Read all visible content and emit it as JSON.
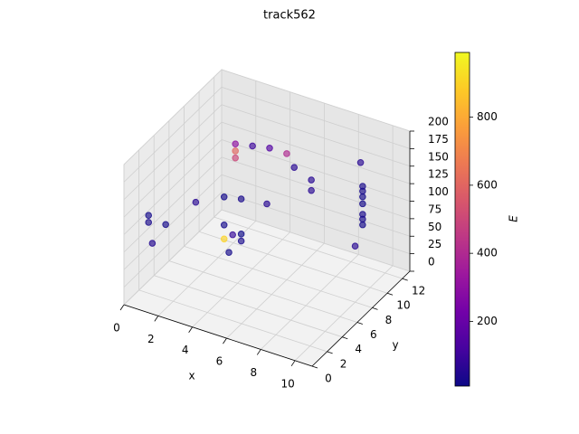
{
  "chart_data": {
    "type": "scatter3d",
    "title": "track562",
    "x_label": "x",
    "y_label": "y",
    "colorbar_label": "E",
    "xlim": [
      0,
      11
    ],
    "ylim": [
      0,
      13
    ],
    "zlim": [
      0,
      200
    ],
    "xticks": [
      0,
      2,
      4,
      6,
      8,
      10
    ],
    "yticks": [
      0,
      2,
      4,
      6,
      8,
      10,
      12
    ],
    "zticks": [
      0,
      25,
      50,
      75,
      100,
      125,
      150,
      175,
      200
    ],
    "clim": [
      10,
      990
    ],
    "cticks": [
      200,
      400,
      600,
      800
    ],
    "colormap": [
      "#0d0887",
      "#46039f",
      "#7201a8",
      "#9c179e",
      "#bd3786",
      "#d8576b",
      "#ed7953",
      "#fb9f3a",
      "#fdca26",
      "#f0f921"
    ],
    "x": [
      10,
      10,
      10,
      10,
      10,
      10,
      10,
      3,
      4,
      5,
      6,
      3,
      3,
      3,
      3.5,
      3,
      4,
      4,
      3.5,
      3,
      4,
      5.5,
      1,
      1,
      2,
      1,
      2,
      6,
      7,
      7,
      9,
      10
    ],
    "y": [
      9,
      9,
      9,
      9,
      9,
      9,
      9,
      8,
      8,
      8,
      8,
      8,
      8,
      6.5,
      6.5,
      6.5,
      6.5,
      6.5,
      6,
      6.5,
      6.5,
      6.5,
      1,
      1,
      1,
      1.5,
      5,
      9,
      9,
      9,
      11,
      8
    ],
    "z": [
      100,
      108,
      115,
      130,
      140,
      148,
      155,
      170,
      175,
      180,
      180,
      160,
      150,
      70,
      60,
      50,
      55,
      65,
      40,
      110,
      115,
      120,
      125,
      115,
      120,
      80,
      110,
      150,
      140,
      125,
      160,
      80
    ],
    "E": [
      20,
      25,
      30,
      20,
      20,
      25,
      30,
      300,
      100,
      150,
      400,
      600,
      500,
      20,
      80,
      900,
      30,
      10,
      20,
      20,
      30,
      60,
      20,
      30,
      20,
      50,
      60,
      60,
      60,
      60,
      60,
      60
    ]
  }
}
